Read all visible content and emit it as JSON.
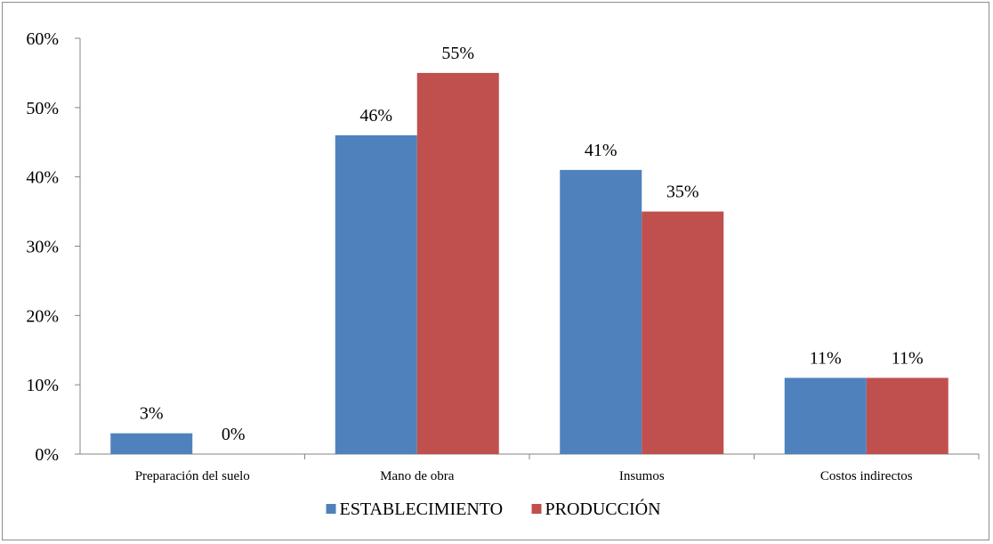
{
  "chart_data": {
    "type": "bar",
    "categories": [
      "Preparación del suelo",
      "Mano de obra",
      "Insumos",
      "Costos indirectos"
    ],
    "series": [
      {
        "name": "ESTABLECIMIENTO",
        "values": [
          3,
          46,
          41,
          11
        ],
        "labels": [
          "3%",
          "46%",
          "41%",
          "11%"
        ],
        "color": "#4F81BD"
      },
      {
        "name": "PRODUCCIÓN",
        "values": [
          0,
          55,
          35,
          11
        ],
        "labels": [
          "0%",
          "55%",
          "35%",
          "11%"
        ],
        "color": "#C0504D"
      }
    ],
    "y_ticks": [
      "0%",
      "10%",
      "20%",
      "30%",
      "40%",
      "50%",
      "60%"
    ],
    "ylim": [
      0,
      60
    ],
    "grid": false,
    "legend_position": "bottom"
  }
}
